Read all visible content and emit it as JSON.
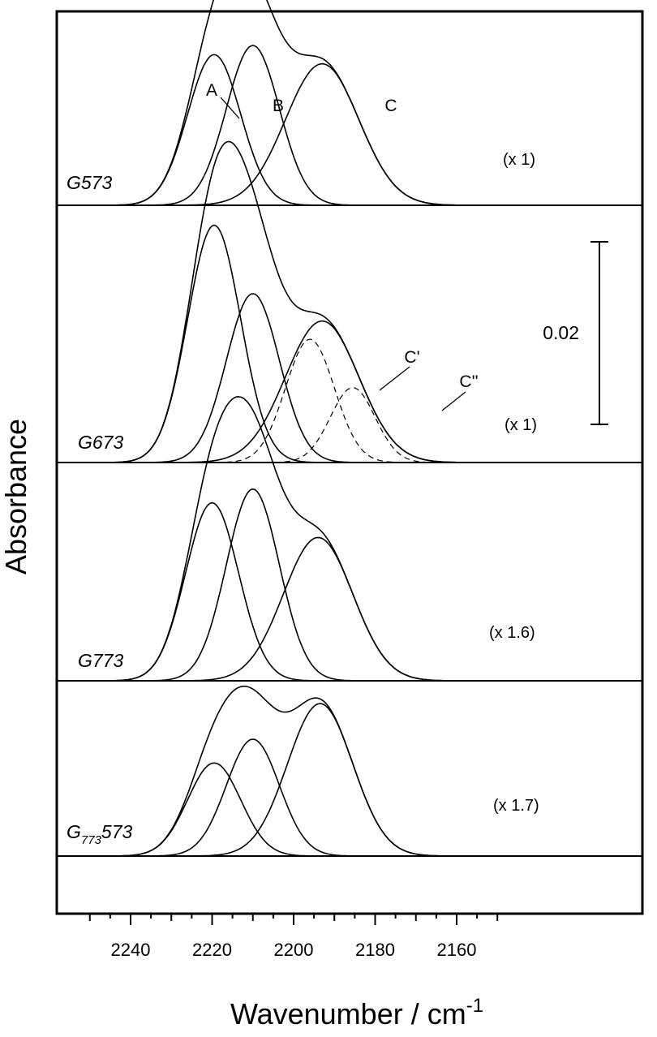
{
  "chart_data": {
    "type": "line",
    "xlabel": "Wavenumber / cm",
    "xlabel_superscript": "-1",
    "ylabel": "Absorbance",
    "xlim": [
      2250,
      2150
    ],
    "x_ticks": [
      2240,
      2220,
      2200,
      2180,
      2160
    ],
    "scale_bar": {
      "label": "0.02",
      "value": 0.02
    },
    "panels": [
      {
        "name": "G573",
        "label_main": "G",
        "label_sub": "",
        "label_rest": "573",
        "scale": "(x 1)",
        "envelope": {
          "start": 2237,
          "end": 2165
        },
        "components": [
          {
            "label": "A",
            "center": 2219.5,
            "height": 0.0165,
            "width": 6.5,
            "dashed": false
          },
          {
            "label": "B",
            "center": 2210,
            "height": 0.0175,
            "width": 6.5,
            "dashed": false
          },
          {
            "label": "C",
            "center": 2193,
            "height": 0.0155,
            "width": 9.0,
            "dashed": false
          }
        ]
      },
      {
        "name": "G673",
        "label_main": "G",
        "label_sub": "",
        "label_rest": "673",
        "scale": "(x 1)",
        "envelope": {
          "start": 2237,
          "end": 2165
        },
        "components": [
          {
            "label": "",
            "center": 2219.5,
            "height": 0.026,
            "width": 6.5,
            "dashed": false
          },
          {
            "label": "",
            "center": 2210,
            "height": 0.0185,
            "width": 6.5,
            "dashed": false
          },
          {
            "label": "",
            "center": 2193,
            "height": 0.0155,
            "width": 9.0,
            "dashed": false
          },
          {
            "label": "C'",
            "center": 2196,
            "height": 0.0135,
            "width": 6.0,
            "dashed": true
          },
          {
            "label": "C''",
            "center": 2185.5,
            "height": 0.0082,
            "width": 5.5,
            "dashed": true
          }
        ]
      },
      {
        "name": "G773",
        "label_main": "G",
        "label_sub": "",
        "label_rest": "773",
        "scale": "(x 1.6)",
        "envelope": {
          "start": 2237,
          "end": 2165
        },
        "components": [
          {
            "label": "",
            "center": 2220,
            "height": 0.0195,
            "width": 6.5,
            "dashed": false
          },
          {
            "label": "",
            "center": 2210,
            "height": 0.021,
            "width": 6.5,
            "dashed": false
          },
          {
            "label": "",
            "center": 2194,
            "height": 0.0157,
            "width": 8.5,
            "dashed": false
          }
        ]
      },
      {
        "name": "G773573",
        "label_main": "G",
        "label_sub": "773",
        "label_rest": "573",
        "scale": "(x 1.7)",
        "envelope": {
          "start": 2237,
          "end": 2165
        },
        "components": [
          {
            "label": "",
            "center": 2219.5,
            "height": 0.0102,
            "width": 6.5,
            "dashed": false
          },
          {
            "label": "",
            "center": 2210,
            "height": 0.0128,
            "width": 6.5,
            "dashed": false
          },
          {
            "label": "",
            "center": 2193.5,
            "height": 0.0167,
            "width": 8.0,
            "dashed": false
          }
        ]
      }
    ]
  }
}
